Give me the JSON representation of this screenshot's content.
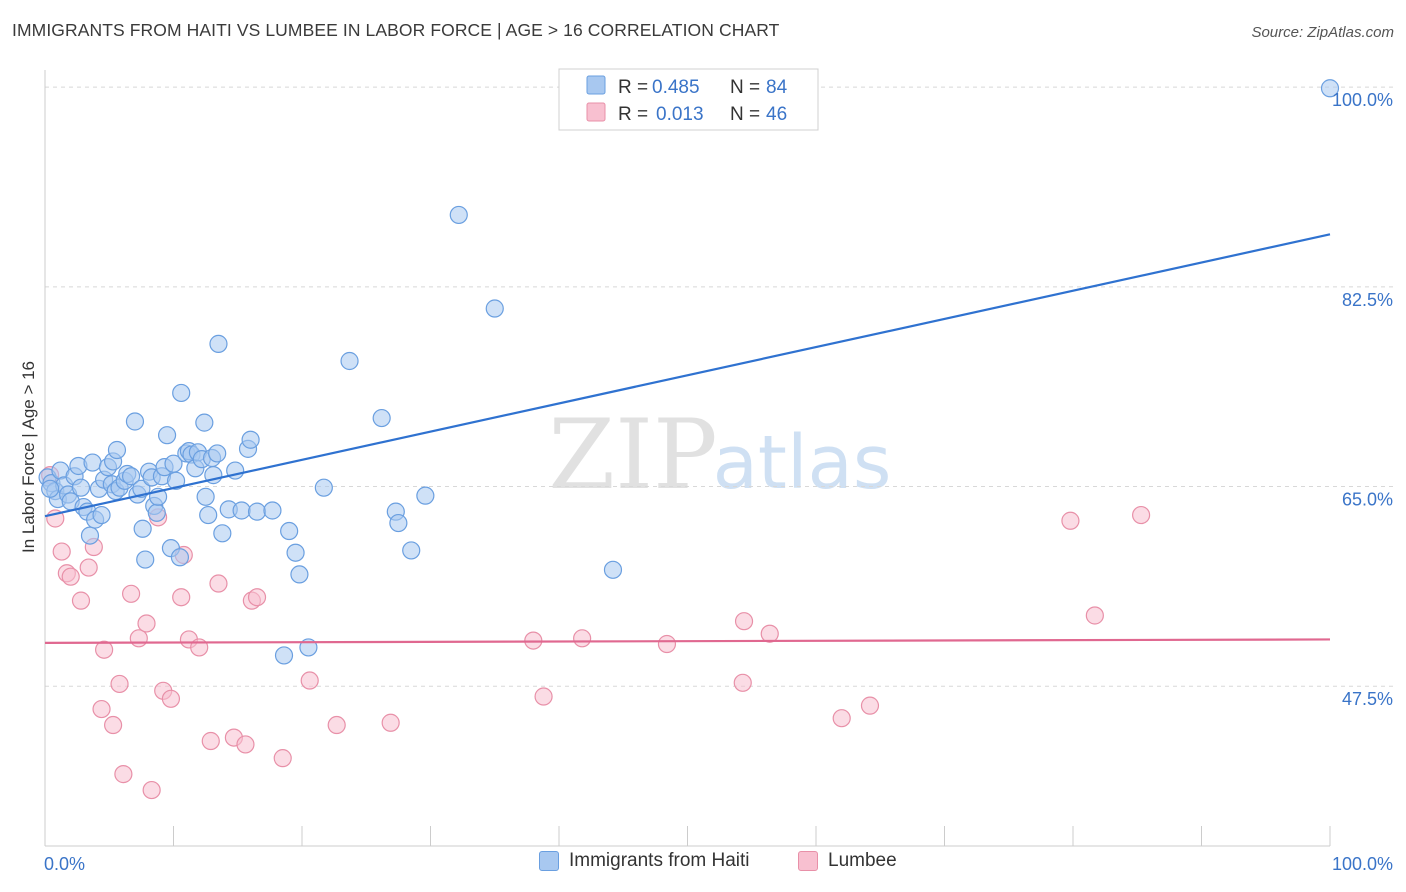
{
  "title": "IMMIGRANTS FROM HAITI VS LUMBEE IN LABOR FORCE | AGE > 16 CORRELATION CHART",
  "source": "Source: ZipAtlas.com",
  "watermark": {
    "zip": "ZIP",
    "atlas": "atlas"
  },
  "colors": {
    "haiti_fill": "#a8c8f0",
    "haiti_stroke": "#6a9fe0",
    "haiti_line": "#2f72d0",
    "lumbee_fill": "#f8c0d0",
    "lumbee_stroke": "#e890a8",
    "lumbee_line": "#e06890",
    "grid": "#d8d8d8",
    "axis_text": "#3a74c8"
  },
  "legend_top": {
    "rows": [
      {
        "r_label": "R =",
        "r_value": "0.485",
        "n_label": "N =",
        "n_value": "84"
      },
      {
        "r_label": "R =",
        "r_value": "0.013",
        "n_label": "N =",
        "n_value": "46"
      }
    ]
  },
  "legend_bottom": {
    "items": [
      "Immigrants from Haiti",
      "Lumbee"
    ]
  },
  "chart_data": {
    "type": "scatter",
    "title": "IMMIGRANTS FROM HAITI VS LUMBEE IN LABOR FORCE | AGE > 16 CORRELATION CHART",
    "ylabel": "In Labor Force | Age > 16",
    "xlabel": "",
    "xlim": [
      0,
      100
    ],
    "ylim": [
      33.5,
      101.5
    ],
    "x_tick_labels": [
      "0.0%",
      "100.0%"
    ],
    "y_ticks": [
      {
        "value": 100,
        "label": "100.0%"
      },
      {
        "value": 82.5,
        "label": "82.5%"
      },
      {
        "value": 65,
        "label": "65.0%"
      },
      {
        "value": 47.5,
        "label": "47.5%"
      }
    ],
    "series": [
      {
        "name": "Immigrants from Haiti",
        "trend": [
          [
            0,
            62.4
          ],
          [
            100,
            87.1
          ]
        ],
        "points": [
          [
            0.2,
            65.8
          ],
          [
            0.5,
            65.3
          ],
          [
            0.8,
            64.6
          ],
          [
            1.0,
            63.9
          ],
          [
            1.2,
            66.4
          ],
          [
            1.5,
            65.1
          ],
          [
            1.8,
            64.3
          ],
          [
            2.0,
            63.7
          ],
          [
            2.3,
            65.9
          ],
          [
            2.6,
            66.8
          ],
          [
            2.8,
            64.9
          ],
          [
            3.0,
            63.2
          ],
          [
            3.3,
            62.8
          ],
          [
            3.5,
            60.7
          ],
          [
            3.7,
            67.1
          ],
          [
            3.9,
            62.1
          ],
          [
            4.2,
            64.8
          ],
          [
            4.4,
            62.5
          ],
          [
            4.6,
            65.6
          ],
          [
            4.9,
            66.7
          ],
          [
            5.2,
            65.2
          ],
          [
            5.5,
            64.6
          ],
          [
            5.3,
            67.2
          ],
          [
            5.6,
            68.2
          ],
          [
            5.8,
            64.9
          ],
          [
            6.2,
            65.5
          ],
          [
            6.4,
            66.1
          ],
          [
            6.7,
            65.9
          ],
          [
            7.0,
            70.7
          ],
          [
            7.2,
            64.3
          ],
          [
            7.5,
            64.8
          ],
          [
            7.6,
            61.3
          ],
          [
            7.8,
            58.6
          ],
          [
            8.1,
            66.3
          ],
          [
            8.3,
            65.8
          ],
          [
            8.5,
            63.3
          ],
          [
            8.7,
            62.7
          ],
          [
            8.8,
            64.1
          ],
          [
            9.1,
            65.9
          ],
          [
            9.3,
            66.7
          ],
          [
            9.5,
            69.5
          ],
          [
            9.8,
            59.6
          ],
          [
            10.0,
            67.0
          ],
          [
            10.2,
            65.5
          ],
          [
            10.5,
            58.8
          ],
          [
            10.6,
            73.2
          ],
          [
            11.0,
            67.9
          ],
          [
            11.2,
            68.1
          ],
          [
            11.4,
            67.8
          ],
          [
            11.7,
            66.6
          ],
          [
            11.9,
            68.0
          ],
          [
            12.2,
            67.4
          ],
          [
            12.4,
            70.6
          ],
          [
            12.5,
            64.1
          ],
          [
            12.7,
            62.5
          ],
          [
            13.0,
            67.5
          ],
          [
            13.1,
            66.0
          ],
          [
            13.4,
            67.9
          ],
          [
            13.5,
            77.5
          ],
          [
            13.8,
            60.9
          ],
          [
            14.3,
            63.0
          ],
          [
            14.8,
            66.4
          ],
          [
            15.3,
            62.9
          ],
          [
            15.8,
            68.3
          ],
          [
            16.0,
            69.1
          ],
          [
            16.5,
            62.8
          ],
          [
            17.7,
            62.9
          ],
          [
            19.0,
            61.1
          ],
          [
            19.5,
            59.2
          ],
          [
            19.8,
            57.3
          ],
          [
            20.5,
            50.9
          ],
          [
            18.6,
            50.2
          ],
          [
            21.7,
            64.9
          ],
          [
            23.7,
            76.0
          ],
          [
            26.2,
            71.0
          ],
          [
            27.3,
            62.8
          ],
          [
            27.5,
            61.8
          ],
          [
            28.5,
            59.4
          ],
          [
            29.6,
            64.2
          ],
          [
            32.2,
            88.8
          ],
          [
            35.0,
            80.6
          ],
          [
            44.2,
            57.7
          ],
          [
            100,
            99.9
          ],
          [
            0.4,
            64.8
          ]
        ]
      },
      {
        "name": "Lumbee",
        "trend": [
          [
            0,
            51.3
          ],
          [
            100,
            51.6
          ]
        ],
        "points": [
          [
            0.4,
            66.0
          ],
          [
            0.8,
            62.2
          ],
          [
            1.3,
            59.3
          ],
          [
            1.7,
            57.4
          ],
          [
            2.0,
            57.1
          ],
          [
            2.8,
            55.0
          ],
          [
            3.4,
            57.9
          ],
          [
            3.8,
            59.7
          ],
          [
            4.4,
            45.5
          ],
          [
            4.6,
            50.7
          ],
          [
            5.3,
            44.1
          ],
          [
            5.8,
            47.7
          ],
          [
            6.1,
            39.8
          ],
          [
            6.7,
            55.6
          ],
          [
            7.3,
            51.7
          ],
          [
            7.9,
            53.0
          ],
          [
            8.3,
            38.4
          ],
          [
            8.8,
            62.3
          ],
          [
            9.2,
            47.1
          ],
          [
            9.8,
            46.4
          ],
          [
            10.6,
            55.3
          ],
          [
            10.8,
            59.0
          ],
          [
            11.2,
            51.6
          ],
          [
            12.0,
            50.9
          ],
          [
            12.9,
            42.7
          ],
          [
            13.5,
            56.5
          ],
          [
            14.7,
            43.0
          ],
          [
            15.6,
            42.4
          ],
          [
            16.1,
            55.0
          ],
          [
            16.5,
            55.3
          ],
          [
            18.5,
            41.2
          ],
          [
            20.6,
            48.0
          ],
          [
            22.7,
            44.1
          ],
          [
            26.9,
            44.3
          ],
          [
            38.0,
            51.5
          ],
          [
            38.8,
            46.6
          ],
          [
            41.8,
            51.7
          ],
          [
            48.4,
            51.2
          ],
          [
            54.4,
            53.2
          ],
          [
            54.3,
            47.8
          ],
          [
            56.4,
            52.1
          ],
          [
            62.0,
            44.7
          ],
          [
            64.2,
            45.8
          ],
          [
            79.8,
            62.0
          ],
          [
            81.7,
            53.7
          ],
          [
            85.3,
            62.5
          ]
        ]
      }
    ]
  }
}
